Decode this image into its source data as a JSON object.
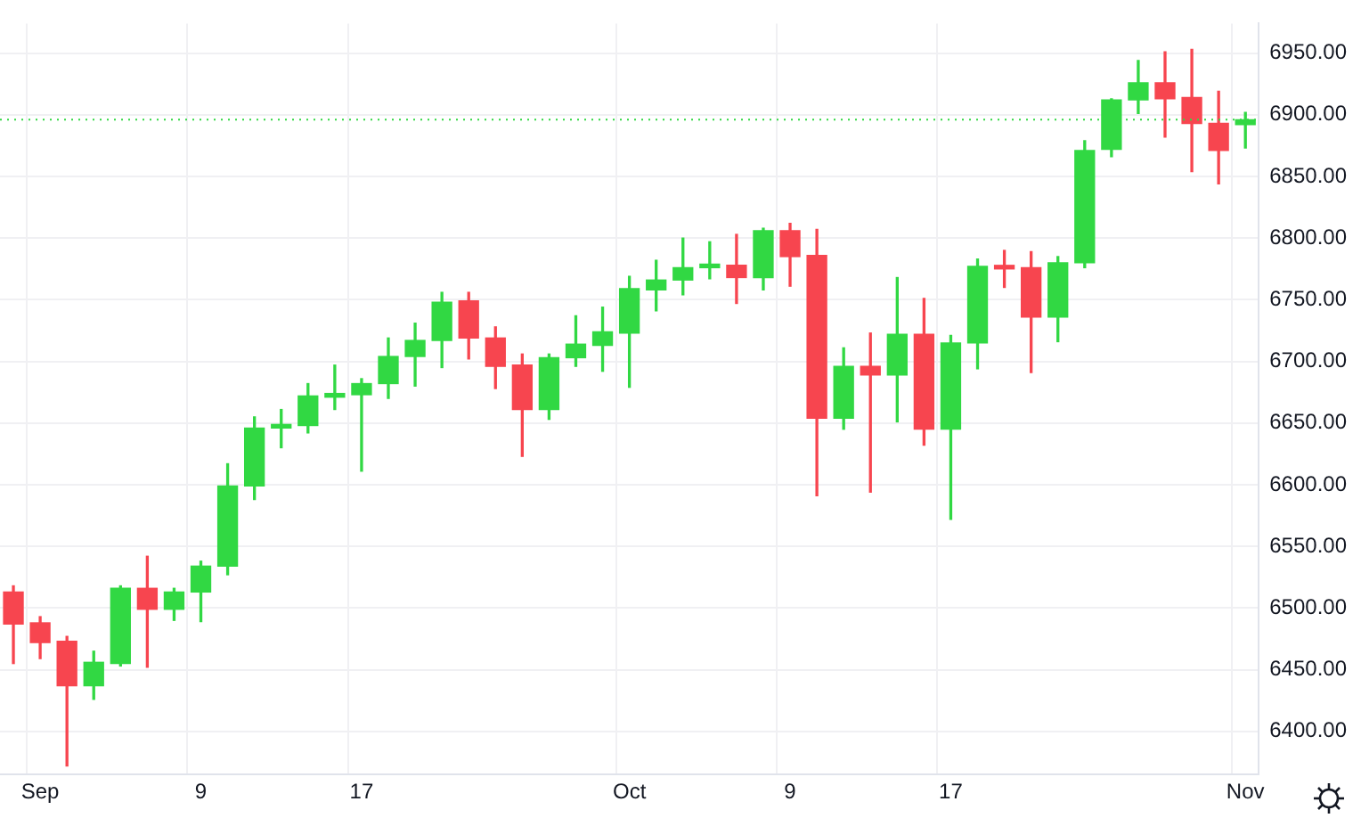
{
  "chart_data": {
    "type": "candlestick",
    "categories": [
      null,
      "Sep",
      null,
      null,
      null,
      null,
      null,
      "9",
      null,
      null,
      null,
      null,
      null,
      "17",
      null,
      null,
      null,
      null,
      null,
      null,
      null,
      null,
      null,
      "Oct",
      null,
      null,
      null,
      null,
      null,
      "9",
      null,
      null,
      null,
      null,
      null,
      "17",
      null,
      null,
      null,
      null,
      null,
      null,
      null,
      null,
      null,
      null,
      "Nov"
    ],
    "ohlc": [
      [
        6513,
        6518,
        6455,
        6487
      ],
      [
        6488,
        6493,
        6459,
        6472
      ],
      [
        6473,
        6477,
        6372,
        6437
      ],
      [
        6437,
        6465,
        6426,
        6456
      ],
      [
        6455,
        6518,
        6453,
        6516
      ],
      [
        6516,
        6542,
        6452,
        6499
      ],
      [
        6499,
        6516,
        6490,
        6513
      ],
      [
        6513,
        6538,
        6489,
        6534
      ],
      [
        6534,
        6617,
        6527,
        6599
      ],
      [
        6599,
        6655,
        6588,
        6646
      ],
      [
        6646,
        6661,
        6630,
        6648
      ],
      [
        6648,
        6682,
        6642,
        6672
      ],
      [
        6671,
        6697,
        6661,
        6674
      ],
      [
        6673,
        6686,
        6611,
        6682
      ],
      [
        6682,
        6719,
        6670,
        6704
      ],
      [
        6704,
        6731,
        6680,
        6717
      ],
      [
        6717,
        6756,
        6695,
        6748
      ],
      [
        6749,
        6756,
        6702,
        6719
      ],
      [
        6719,
        6728,
        6678,
        6696
      ],
      [
        6697,
        6706,
        6623,
        6661
      ],
      [
        6661,
        6706,
        6653,
        6703
      ],
      [
        6703,
        6737,
        6696,
        6714
      ],
      [
        6713,
        6744,
        6692,
        6724
      ],
      [
        6723,
        6769,
        6679,
        6759
      ],
      [
        6758,
        6782,
        6741,
        6766
      ],
      [
        6766,
        6800,
        6754,
        6776
      ],
      [
        6776,
        6797,
        6767,
        6778
      ],
      [
        6778,
        6803,
        6747,
        6768
      ],
      [
        6768,
        6808,
        6758,
        6806
      ],
      [
        6806,
        6812,
        6761,
        6785
      ],
      [
        6786,
        6807,
        6591,
        6654
      ],
      [
        6654,
        6711,
        6645,
        6696
      ],
      [
        6696,
        6723,
        6594,
        6689
      ],
      [
        6689,
        6768,
        6651,
        6722
      ],
      [
        6722,
        6751,
        6632,
        6645
      ],
      [
        6645,
        6721,
        6572,
        6715
      ],
      [
        6715,
        6783,
        6694,
        6777
      ],
      [
        6777,
        6790,
        6760,
        6775
      ],
      [
        6776,
        6789,
        6691,
        6736
      ],
      [
        6736,
        6785,
        6716,
        6780
      ],
      [
        6780,
        6879,
        6776,
        6871
      ],
      [
        6872,
        6913,
        6866,
        6912
      ],
      [
        6912,
        6944,
        6901,
        6926
      ],
      [
        6926,
        6951,
        6882,
        6913
      ],
      [
        6914,
        6953,
        6854,
        6893
      ],
      [
        6893,
        6919,
        6844,
        6871
      ],
      [
        6892,
        6902,
        6873,
        6896
      ]
    ],
    "colors": [
      "#f7454f",
      "#f7454f",
      "#f7454f",
      "#31d843",
      "#31d843",
      "#f7454f",
      "#31d843",
      "#31d843",
      "#31d843",
      "#31d843",
      "#31d843",
      "#31d843",
      "#31d843",
      "#31d843",
      "#31d843",
      "#31d843",
      "#31d843",
      "#f7454f",
      "#f7454f",
      "#f7454f",
      "#31d843",
      "#31d843",
      "#31d843",
      "#31d843",
      "#31d843",
      "#31d843",
      "#31d843",
      "#f7454f",
      "#31d843",
      "#f7454f",
      "#f7454f",
      "#31d843",
      "#f7454f",
      "#31d843",
      "#f7454f",
      "#31d843",
      "#31d843",
      "#f7454f",
      "#f7454f",
      "#31d843",
      "#31d843",
      "#31d843",
      "#31d843",
      "#f7454f",
      "#f7454f",
      "#f7454f",
      "#31d843"
    ],
    "ylim": [
      6365,
      6974
    ],
    "yticks": [
      {
        "value": 6400,
        "label": "6400.00"
      },
      {
        "value": 6450,
        "label": "6450.00"
      },
      {
        "value": 6500,
        "label": "6500.00"
      },
      {
        "value": 6550,
        "label": "6550.00"
      },
      {
        "value": 6600,
        "label": "6600.00"
      },
      {
        "value": 6650,
        "label": "6650.00"
      },
      {
        "value": 6700,
        "label": "6700.00"
      },
      {
        "value": 6750,
        "label": "6750.00"
      },
      {
        "value": 6800,
        "label": "6800.00"
      },
      {
        "value": 6850,
        "label": "6850.00"
      },
      {
        "value": 6900,
        "label": "6900.00"
      },
      {
        "value": 6950,
        "label": "6950.00"
      }
    ],
    "ref_lines": [
      {
        "axis": "y",
        "value": 6896,
        "color": "#31d843",
        "line_style": "dotted"
      }
    ],
    "grid": true
  }
}
